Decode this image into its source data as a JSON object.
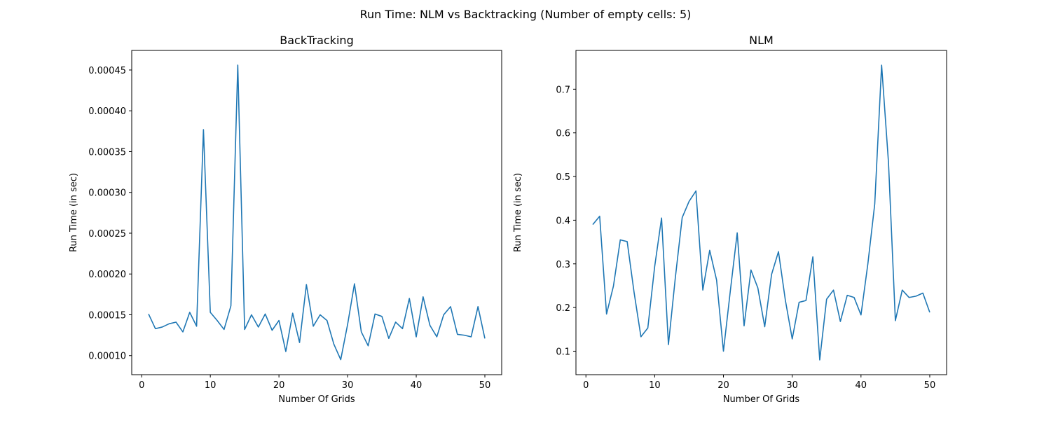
{
  "figure": {
    "suptitle": "Run Time: NLM vs Backtracking (Number of empty cells: 5)"
  },
  "colors": {
    "line": "#1f77b4",
    "axes": "#000000",
    "background": "#ffffff"
  },
  "chart_data": [
    {
      "type": "line",
      "title": "BackTracking",
      "xlabel": "Number Of Grids",
      "ylabel": "Run Time (in sec)",
      "xlim": [
        -1.45,
        52.45
      ],
      "ylim": [
        7.66e-05,
        0.000474
      ],
      "xticks": [
        0,
        10,
        20,
        30,
        40,
        50
      ],
      "xtick_labels": [
        "0",
        "10",
        "20",
        "30",
        "40",
        "50"
      ],
      "yticks": [
        0.0001,
        0.00015,
        0.0002,
        0.00025,
        0.0003,
        0.00035,
        0.0004,
        0.00045
      ],
      "ytick_labels": [
        "0.00010",
        "0.00015",
        "0.00020",
        "0.00025",
        "0.00030",
        "0.00035",
        "0.00040",
        "0.00045"
      ],
      "grid": false,
      "series": [
        {
          "x": [
            1,
            2,
            3,
            4,
            5,
            6,
            7,
            8,
            9,
            10,
            11,
            12,
            13,
            14,
            15,
            16,
            17,
            18,
            19,
            20,
            21,
            22,
            23,
            24,
            25,
            26,
            27,
            28,
            29,
            30,
            31,
            32,
            33,
            34,
            35,
            36,
            37,
            38,
            39,
            40,
            41,
            42,
            43,
            44,
            45,
            46,
            47,
            48,
            49,
            50
          ],
          "y": [
            0.000151,
            0.000133,
            0.000135,
            0.000139,
            0.000141,
            0.000129,
            0.000153,
            0.000136,
            0.000377,
            0.000153,
            0.000143,
            0.000132,
            0.000161,
            0.000456,
            0.000132,
            0.00015,
            0.000135,
            0.000151,
            0.000131,
            0.000143,
            0.000105,
            0.000152,
            0.000116,
            0.000187,
            0.000136,
            0.00015,
            0.000143,
            0.000114,
            9.5e-05,
            0.000138,
            0.000188,
            0.000129,
            0.000112,
            0.000151,
            0.000148,
            0.000121,
            0.000141,
            0.000133,
            0.00017,
            0.000123,
            0.000172,
            0.000137,
            0.000123,
            0.00015,
            0.00016,
            0.000126,
            0.000125,
            0.000123,
            0.00016,
            0.000121
          ]
        }
      ]
    },
    {
      "type": "line",
      "title": "NLM",
      "xlabel": "Number Of Grids",
      "ylabel": "Run Time (in sec)",
      "xlim": [
        -1.45,
        52.45
      ],
      "ylim": [
        0.0462,
        0.7888
      ],
      "xticks": [
        0,
        10,
        20,
        30,
        40,
        50
      ],
      "xtick_labels": [
        "0",
        "10",
        "20",
        "30",
        "40",
        "50"
      ],
      "yticks": [
        0.1,
        0.2,
        0.3,
        0.4,
        0.5,
        0.6,
        0.7
      ],
      "ytick_labels": [
        "0.1",
        "0.2",
        "0.3",
        "0.4",
        "0.5",
        "0.6",
        "0.7"
      ],
      "grid": false,
      "series": [
        {
          "x": [
            1,
            2,
            3,
            4,
            5,
            6,
            7,
            8,
            9,
            10,
            11,
            12,
            13,
            14,
            15,
            16,
            17,
            18,
            19,
            20,
            21,
            22,
            23,
            24,
            25,
            26,
            27,
            28,
            29,
            30,
            31,
            32,
            33,
            34,
            35,
            36,
            37,
            38,
            39,
            40,
            41,
            42,
            43,
            44,
            45,
            46,
            47,
            48,
            49,
            50
          ],
          "y": [
            0.39,
            0.409,
            0.185,
            0.249,
            0.355,
            0.351,
            0.235,
            0.133,
            0.153,
            0.294,
            0.405,
            0.115,
            0.268,
            0.406,
            0.443,
            0.467,
            0.24,
            0.331,
            0.263,
            0.1,
            0.238,
            0.371,
            0.158,
            0.286,
            0.245,
            0.156,
            0.276,
            0.328,
            0.217,
            0.128,
            0.212,
            0.216,
            0.316,
            0.08,
            0.219,
            0.24,
            0.168,
            0.228,
            0.223,
            0.183,
            0.3,
            0.437,
            0.755,
            0.532,
            0.17,
            0.24,
            0.223,
            0.226,
            0.233,
            0.189
          ]
        }
      ]
    }
  ]
}
